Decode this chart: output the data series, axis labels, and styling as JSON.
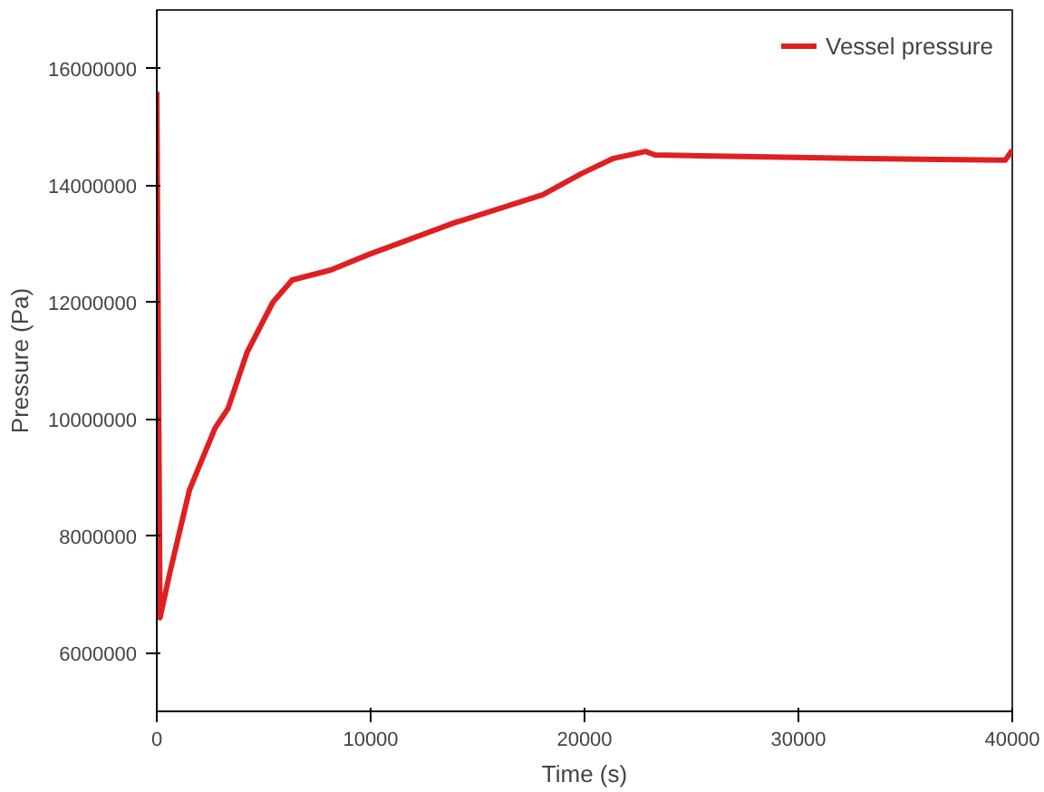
{
  "chart_data": {
    "type": "line",
    "xlabel": "Time (s)",
    "ylabel": "Pressure (Pa)",
    "xlim": [
      0,
      40000
    ],
    "ylim": [
      5000000,
      17000000
    ],
    "xticks": [
      0,
      10000,
      20000,
      30000,
      40000
    ],
    "yticks": [
      6000000,
      8000000,
      10000000,
      12000000,
      14000000,
      16000000
    ],
    "grid": false,
    "legend": "top right",
    "series": [
      {
        "name": "Vessel pressure",
        "color": "#e02020",
        "x": [
          0,
          150,
          630,
          1530,
          2730,
          3330,
          4230,
          5430,
          6330,
          8130,
          9930,
          13850,
          18050,
          19850,
          21350,
          22850,
          23300,
          32460,
          39670,
          40000
        ],
        "values": [
          15600000,
          6600000,
          7400000,
          8790000,
          9850000,
          10180000,
          11150000,
          12000000,
          12380000,
          12550000,
          12820000,
          13350000,
          13840000,
          14200000,
          14460000,
          14580000,
          14520000,
          14460000,
          14430000,
          14600000
        ]
      }
    ]
  }
}
